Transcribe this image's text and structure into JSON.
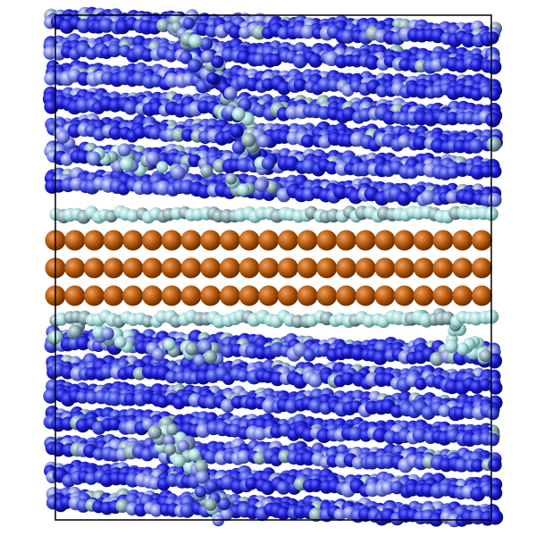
{
  "scene": {
    "background": "#ffffff",
    "box_outline_color": "#000000",
    "colors": {
      "metal_atom": "#b85a0c",
      "interface_atom": "#b0e6e6",
      "bulk_atom_dark": "#1a1ad6",
      "bulk_atom_mid": "#3a46e0",
      "bulk_atom_light": "#7a86ea",
      "defect_atom": "#a0d8d8"
    },
    "layers": {
      "metal_rows": 3,
      "upper_bulk_rows": 7,
      "lower_bulk_rows": 7,
      "interface_rows_per_side": 1
    },
    "sphere_labels_visible": false
  }
}
